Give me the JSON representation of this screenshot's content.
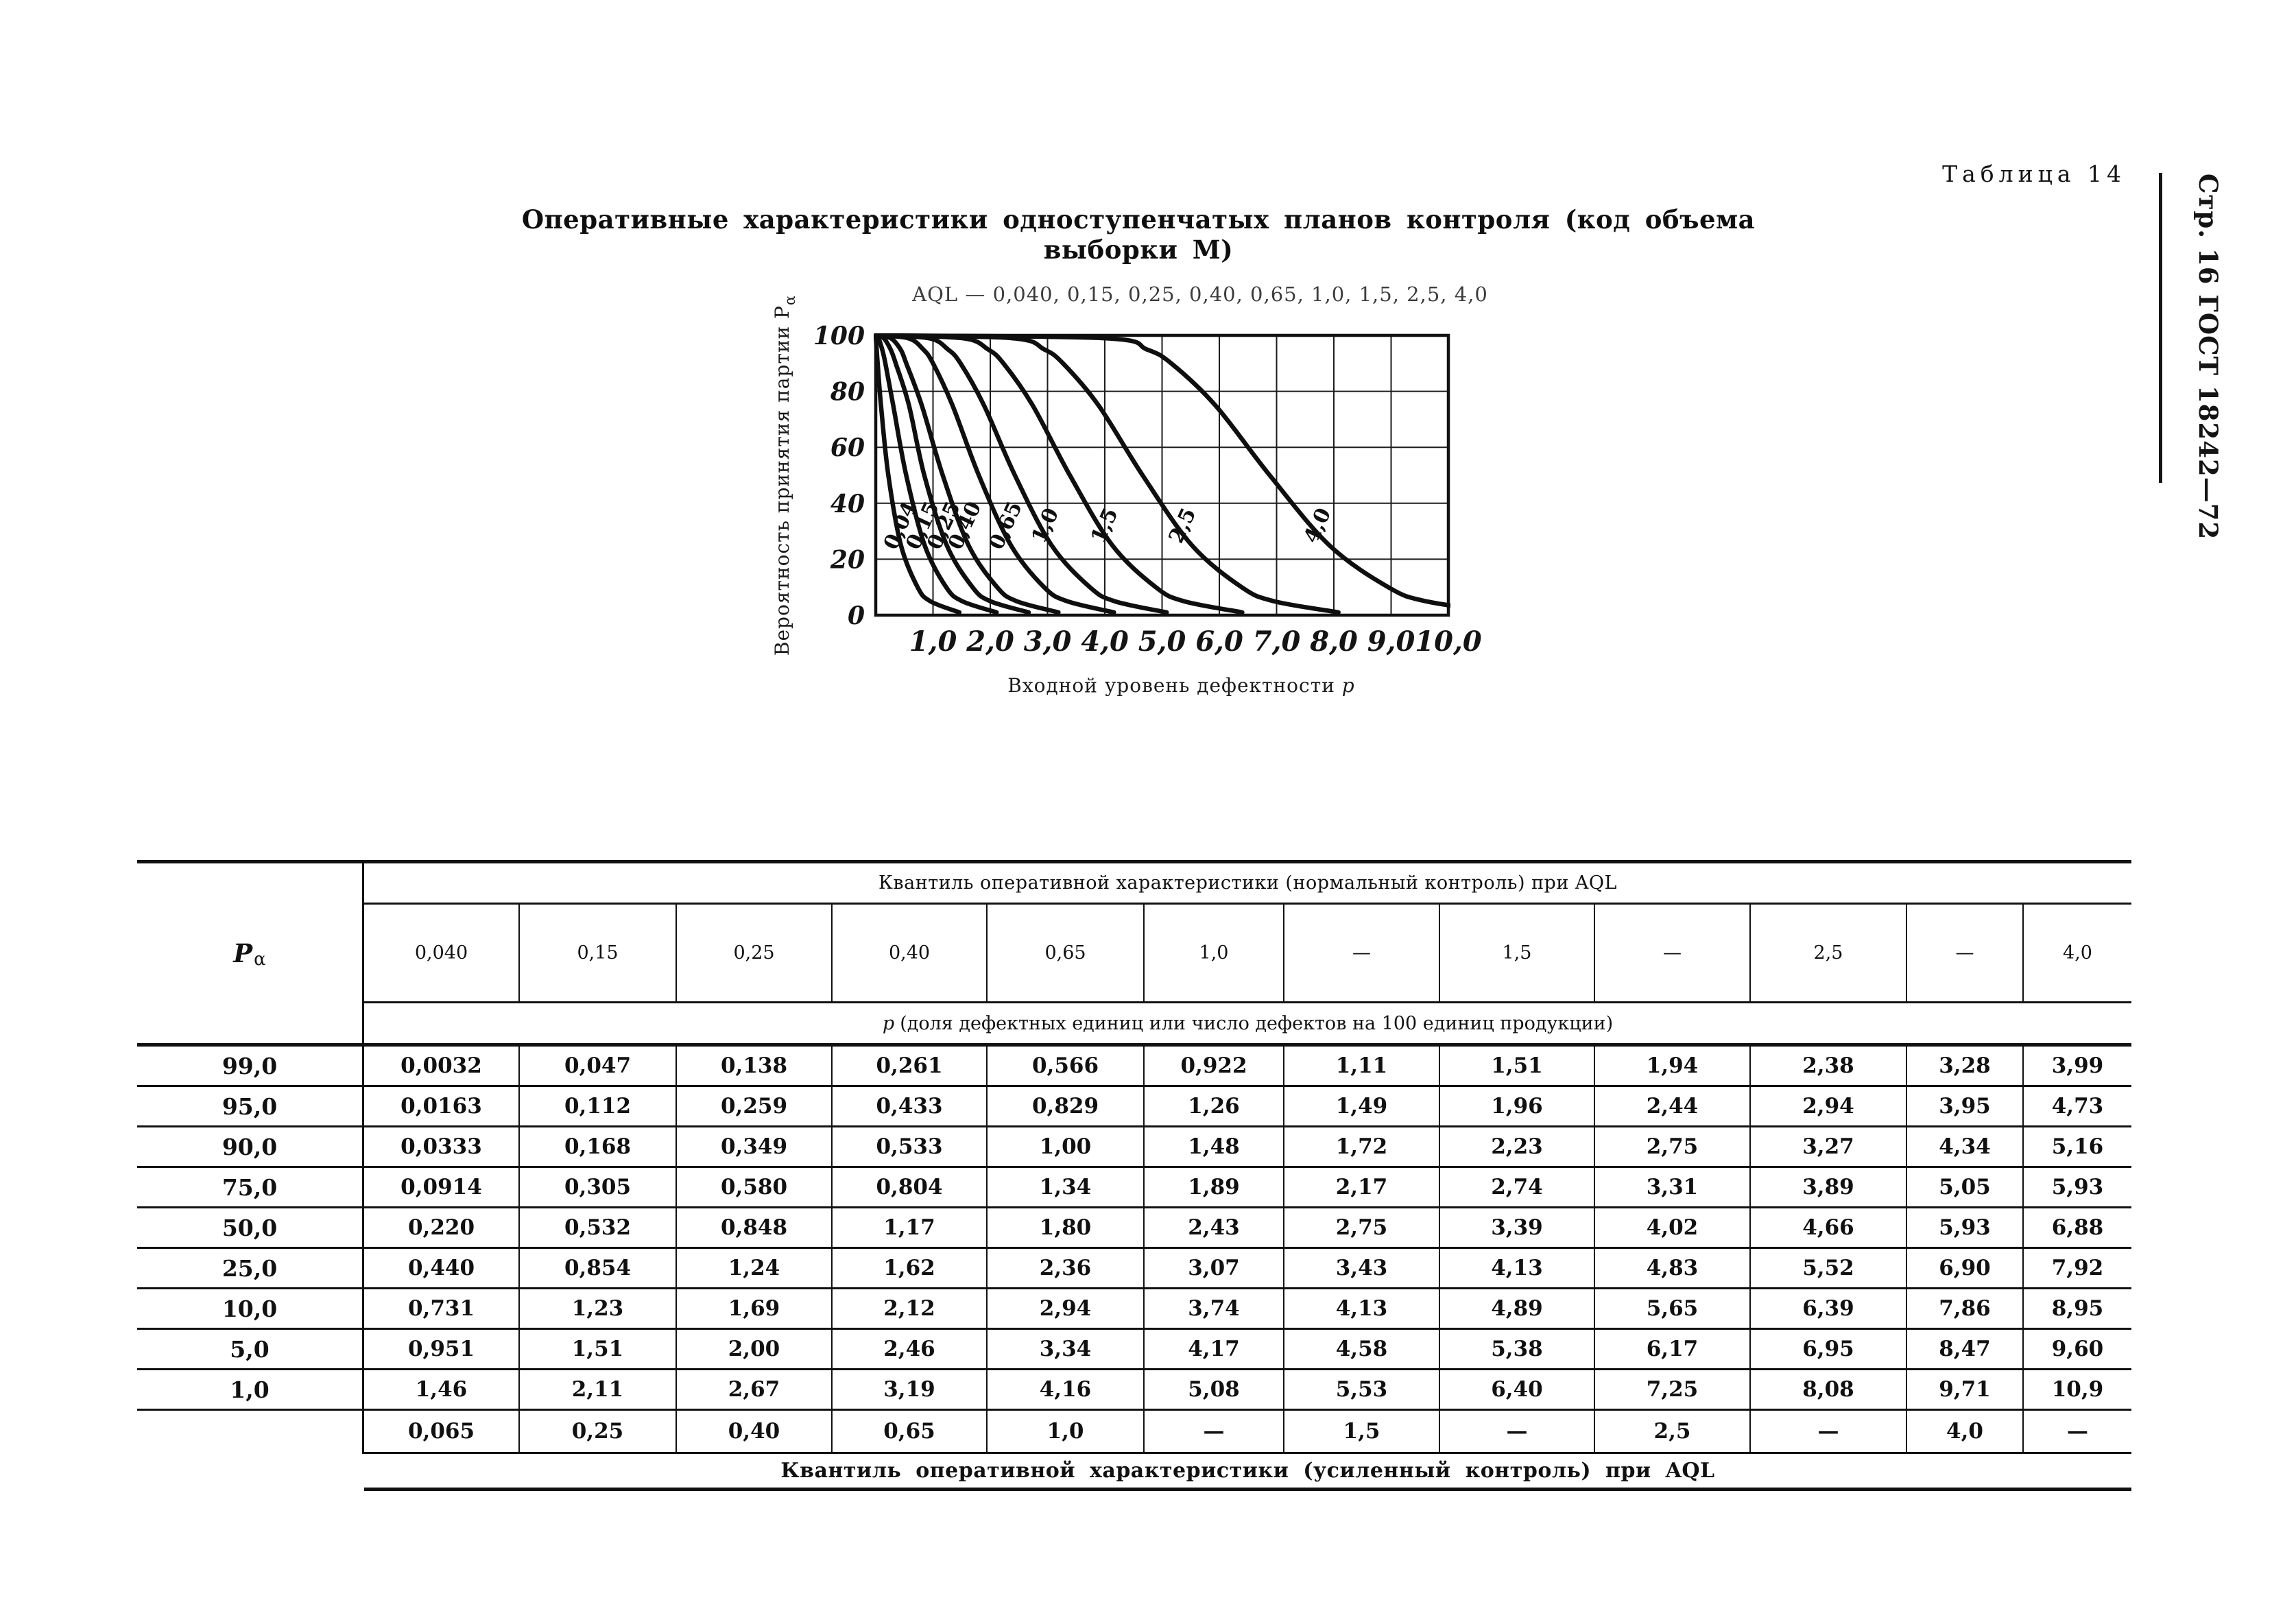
{
  "page": {
    "table_caption": "Таблица 14",
    "sidebar_ref": "Стр. 16 ГОСТ 18242—72",
    "title": "Оперативные характеристики одноступенчатых планов контроля (код объема выборки М)"
  },
  "chart_data": {
    "type": "line",
    "title": "AQL — 0,040, 0,15, 0,25, 0,40, 0,65, 1,0, 1,5, 2,5, 4,0",
    "xlabel": "Входной уровень дефектности p",
    "ylabel": "Вероятность принятия партии Pα",
    "xlim": [
      0,
      10
    ],
    "ylim": [
      0,
      100
    ],
    "grid": true,
    "x_ticks": [
      "1,0",
      "2,0",
      "3,0",
      "4,0",
      "5,0",
      "6,0",
      "7,0",
      "8,0",
      "9,0",
      "10,0"
    ],
    "x_tick_values": [
      1,
      2,
      3,
      4,
      5,
      6,
      7,
      8,
      9,
      10
    ],
    "y_ticks": [
      "0",
      "20",
      "40",
      "60",
      "80",
      "100"
    ],
    "y_tick_values": [
      0,
      20,
      40,
      60,
      80,
      100
    ],
    "pa_levels": [
      100,
      99,
      95,
      90,
      75,
      50,
      25,
      10,
      5,
      1
    ],
    "series": [
      {
        "name": "0,04",
        "x": [
          0,
          0.0032,
          0.0163,
          0.0333,
          0.0914,
          0.22,
          0.44,
          0.731,
          0.951,
          1.46
        ]
      },
      {
        "name": "0,15",
        "x": [
          0,
          0.047,
          0.112,
          0.168,
          0.305,
          0.532,
          0.854,
          1.23,
          1.51,
          2.11
        ]
      },
      {
        "name": "0,25",
        "x": [
          0,
          0.138,
          0.259,
          0.349,
          0.58,
          0.848,
          1.24,
          1.69,
          2.0,
          2.67
        ]
      },
      {
        "name": "0,40",
        "x": [
          0,
          0.261,
          0.433,
          0.533,
          0.804,
          1.17,
          1.62,
          2.12,
          2.46,
          3.19
        ]
      },
      {
        "name": "0,65",
        "x": [
          0,
          0.566,
          0.829,
          1.0,
          1.34,
          1.8,
          2.36,
          2.94,
          3.34,
          4.16
        ]
      },
      {
        "name": "1,0",
        "x": [
          0,
          0.922,
          1.26,
          1.48,
          1.89,
          2.43,
          3.07,
          3.74,
          4.17,
          5.08
        ]
      },
      {
        "name": "1,5",
        "x": [
          0,
          1.51,
          1.96,
          2.23,
          2.74,
          3.39,
          4.13,
          4.89,
          5.38,
          6.4
        ]
      },
      {
        "name": "2,5",
        "x": [
          0,
          2.38,
          2.94,
          3.27,
          3.89,
          4.66,
          5.52,
          6.39,
          6.95,
          8.08
        ]
      },
      {
        "name": "4,0",
        "x": [
          0,
          3.99,
          4.73,
          5.16,
          5.93,
          6.88,
          7.92,
          8.95,
          9.6,
          10.9
        ]
      }
    ]
  },
  "table": {
    "pa_symbol": "P",
    "pa_sub": "α",
    "header_normal": "Квантиль оперативной характеристики (нормальный контроль) при AQL",
    "aql_headers": [
      "0,040",
      "0,15",
      "0,25",
      "0,40",
      "0,65",
      "1,0",
      "—",
      "1,5",
      "—",
      "2,5",
      "—",
      "4,0"
    ],
    "p_note_symbol": "p",
    "p_note_rest": "(доля дефектных единиц или число дефектов на 100 единиц продукции)",
    "rows": [
      {
        "pa": "99,0",
        "values": [
          "0,0032",
          "0,047",
          "0,138",
          "0,261",
          "0,566",
          "0,922",
          "1,11",
          "1,51",
          "1,94",
          "2,38",
          "3,28",
          "3,99"
        ]
      },
      {
        "pa": "95,0",
        "values": [
          "0,0163",
          "0,112",
          "0,259",
          "0,433",
          "0,829",
          "1,26",
          "1,49",
          "1,96",
          "2,44",
          "2,94",
          "3,95",
          "4,73"
        ]
      },
      {
        "pa": "90,0",
        "values": [
          "0,0333",
          "0,168",
          "0,349",
          "0,533",
          "1,00",
          "1,48",
          "1,72",
          "2,23",
          "2,75",
          "3,27",
          "4,34",
          "5,16"
        ]
      },
      {
        "pa": "75,0",
        "values": [
          "0,0914",
          "0,305",
          "0,580",
          "0,804",
          "1,34",
          "1,89",
          "2,17",
          "2,74",
          "3,31",
          "3,89",
          "5,05",
          "5,93"
        ]
      },
      {
        "pa": "50,0",
        "values": [
          "0,220",
          "0,532",
          "0,848",
          "1,17",
          "1,80",
          "2,43",
          "2,75",
          "3,39",
          "4,02",
          "4,66",
          "5,93",
          "6,88"
        ]
      },
      {
        "pa": "25,0",
        "values": [
          "0,440",
          "0,854",
          "1,24",
          "1,62",
          "2,36",
          "3,07",
          "3,43",
          "4,13",
          "4,83",
          "5,52",
          "6,90",
          "7,92"
        ]
      },
      {
        "pa": "10,0",
        "values": [
          "0,731",
          "1,23",
          "1,69",
          "2,12",
          "2,94",
          "3,74",
          "4,13",
          "4,89",
          "5,65",
          "6,39",
          "7,86",
          "8,95"
        ]
      },
      {
        "pa": "5,0",
        "values": [
          "0,951",
          "1,51",
          "2,00",
          "2,46",
          "3,34",
          "4,17",
          "4,58",
          "5,38",
          "6,17",
          "6,95",
          "8,47",
          "9,60"
        ]
      },
      {
        "pa": "1,0",
        "values": [
          "1,46",
          "2,11",
          "2,67",
          "3,19",
          "4,16",
          "5,08",
          "5,53",
          "6,40",
          "7,25",
          "8,08",
          "9,71",
          "10,9"
        ]
      }
    ],
    "tightened_row": [
      "0,065",
      "0,25",
      "0,40",
      "0,65",
      "1,0",
      "—",
      "1,5",
      "—",
      "2,5",
      "—",
      "4,0",
      "—"
    ],
    "footer_tightened": "Квантиль оперативной характеристики (усиленный контроль) при AQL"
  }
}
